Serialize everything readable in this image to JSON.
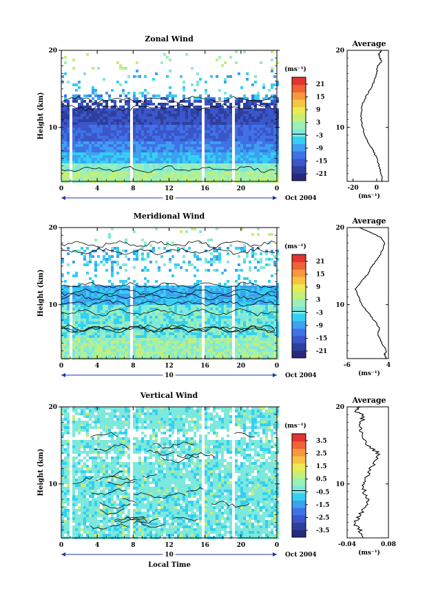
{
  "xaxis": {
    "tick_labels": [
      "0",
      "4",
      "8",
      "12",
      "16",
      "20",
      "0"
    ],
    "day_label": "10",
    "month_label": "Oct 2004",
    "xlabel": "Local Time"
  },
  "yaxis": {
    "ylabel": "Height (km)",
    "tick_labels": [
      "10",
      "20"
    ]
  },
  "unit_label": "(ms⁻¹)",
  "average_title": "Average",
  "colors": [
    "#262a7a",
    "#2e3f9e",
    "#3a56c9",
    "#3f72e6",
    "#3ea0f0",
    "#33d0f2",
    "#7de8dc",
    "#9af0b8",
    "#c4ef78",
    "#ecea52",
    "#f6c343",
    "#f6983c",
    "#ef6336",
    "#e33430"
  ],
  "chart_data": [
    {
      "type": "heatmap",
      "title": "Zonal Wind",
      "x_range": [
        0,
        24
      ],
      "ylim": [
        3,
        20
      ],
      "colorbar_ticks": [
        "21",
        "15",
        "9",
        "3",
        "-3",
        "-9",
        "-15",
        "-21"
      ],
      "colorbar_range": [
        -24,
        24
      ],
      "profile": {
        "xlim": [
          -25,
          10
        ],
        "xticks": [
          "-20",
          "0"
        ],
        "heights": [
          3,
          4,
          5,
          6,
          7,
          8,
          9,
          10,
          11,
          12,
          13,
          14,
          15,
          16,
          17,
          18,
          18.5,
          19,
          19.5,
          20
        ],
        "values": [
          5,
          4,
          2,
          0,
          -3,
          -7,
          -10,
          -12,
          -13,
          -13,
          -12,
          -9,
          -5,
          -2,
          0,
          1,
          4,
          3,
          2,
          4
        ]
      }
    },
    {
      "type": "heatmap",
      "title": "Meridional Wind",
      "x_range": [
        0,
        24
      ],
      "ylim": [
        3,
        20
      ],
      "colorbar_ticks": [
        "21",
        "15",
        "9",
        "3",
        "-3",
        "-9",
        "-15",
        "-21"
      ],
      "colorbar_range": [
        -24,
        24
      ],
      "profile": {
        "xlim": [
          -6,
          4
        ],
        "xticks": [
          "-6",
          "4"
        ],
        "heights": [
          3,
          3.5,
          4,
          5,
          6,
          7,
          8,
          9,
          10,
          11,
          12,
          13,
          14,
          15,
          16,
          17,
          18,
          18.7,
          19.3,
          20
        ],
        "values": [
          3.5,
          3,
          3.5,
          2.5,
          1.5,
          1.8,
          0.5,
          -1,
          -2.5,
          -3.2,
          -4,
          -2.5,
          -1,
          0,
          1.5,
          2.5,
          3,
          2.2,
          0,
          -3
        ]
      }
    },
    {
      "type": "heatmap",
      "title": "Vertical Wind",
      "x_range": [
        0,
        24
      ],
      "ylim": [
        3,
        20
      ],
      "colorbar_ticks": [
        "3.5",
        "2.5",
        "1.5",
        "0.5",
        "-0.5",
        "-1.5",
        "-2.5",
        "-3.5"
      ],
      "colorbar_range": [
        -4,
        4
      ],
      "profile": {
        "xlim": [
          -0.04,
          0.08
        ],
        "xticks": [
          "-0.04",
          "0.08"
        ],
        "heights": [
          3,
          4,
          5,
          6,
          7,
          8,
          9,
          10,
          11,
          12,
          13,
          14,
          15,
          16,
          17,
          18,
          19,
          19.5,
          20
        ],
        "values": [
          0,
          0,
          -0.02,
          0,
          0.01,
          0.02,
          0.01,
          0.01,
          0.02,
          0.03,
          0.04,
          0.05,
          0.02,
          0.01,
          0.0,
          0.0,
          0.01,
          -0.02,
          0.0
        ]
      }
    }
  ]
}
